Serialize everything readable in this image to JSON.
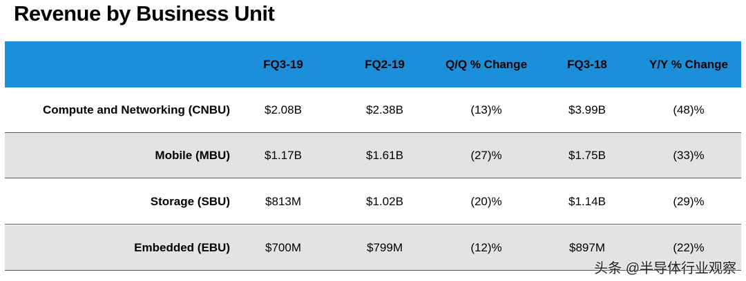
{
  "title": "Revenue by Business Unit",
  "table": {
    "columns": [
      "FQ3-19",
      "FQ2-19",
      "Q/Q % Change",
      "FQ3-18",
      "Y/Y % Change"
    ],
    "rows": [
      {
        "label": "Compute and Networking (CNBU)",
        "values": [
          "$2.08B",
          "$2.38B",
          "(13)%",
          "$3.99B",
          "(48)%"
        ]
      },
      {
        "label": "Mobile (MBU)",
        "values": [
          "$1.17B",
          "$1.61B",
          "(27)%",
          "$1.75B",
          "(33)%"
        ]
      },
      {
        "label": "Storage (SBU)",
        "values": [
          "$813M",
          "$1.02B",
          "(20)%",
          "$1.14B",
          "(29)%"
        ]
      },
      {
        "label": "Embedded (EBU)",
        "values": [
          "$700M",
          "$799M",
          "(12)%",
          "$897M",
          "(22)%"
        ]
      }
    ]
  },
  "watermark": "头条 @半导体行业观察"
}
